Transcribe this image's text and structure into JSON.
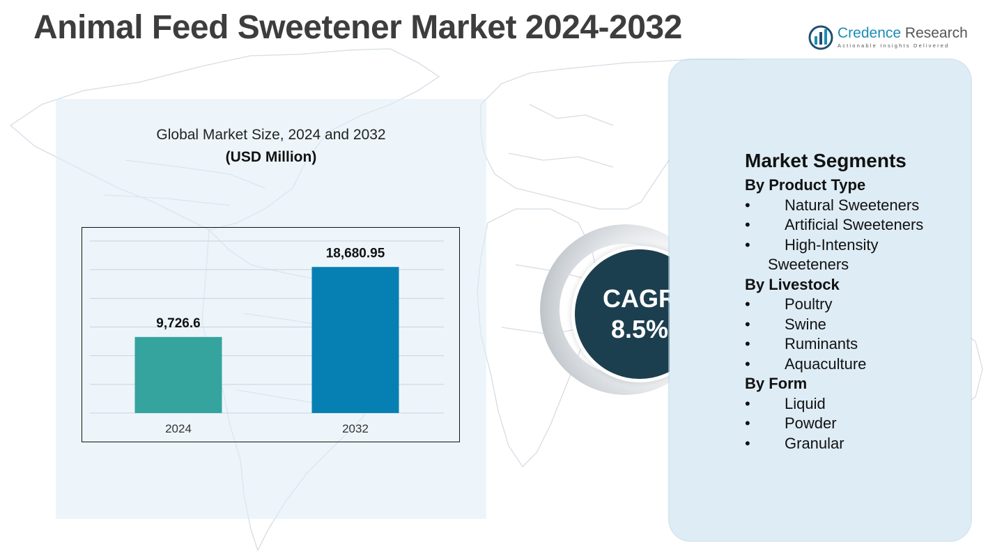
{
  "header": {
    "title": "Animal Feed Sweetener Market 2024-2032",
    "logo_name_primary": "Credence",
    "logo_name_secondary": "Research",
    "logo_tagline": "Actionable Insights Delivered"
  },
  "chart_panel": {
    "title": "Global Market Size, 2024 and 2032",
    "subtitle": "(USD Million)"
  },
  "chart_data": {
    "type": "bar",
    "title": "Global Market Size, 2024 and 2032",
    "subtitle": "(USD Million)",
    "categories": [
      "2024",
      "2032"
    ],
    "values": [
      9726.6,
      18680.95
    ],
    "value_labels": [
      "9,726.6",
      "18,680.95"
    ],
    "bar_colors": [
      "#35a39e",
      "#0680b3"
    ],
    "ylim": [
      0,
      22000
    ],
    "grid": true,
    "xlabel": "",
    "ylabel": ""
  },
  "cagr": {
    "label": "CAGR",
    "value": "8.5%"
  },
  "segments": {
    "heading": "Market Segments",
    "groups": [
      {
        "title": "By Product Type",
        "items": [
          "Natural Sweeteners",
          "Artificial Sweeteners",
          "High-Intensity",
          "Sweeteners"
        ]
      },
      {
        "title": "By Livestock",
        "items": [
          "Poultry",
          "Swine",
          "Ruminants",
          "Aquaculture"
        ]
      },
      {
        "title": "By Form",
        "items": [
          "Liquid",
          "Powder",
          "Granular"
        ]
      }
    ],
    "bullet": "•"
  },
  "colors": {
    "title_gray": "#3d3d3d",
    "cagr_circle": "#1c3f4f",
    "panel_bg": "#deecf5",
    "brand_blue": "#1a8cb8"
  }
}
